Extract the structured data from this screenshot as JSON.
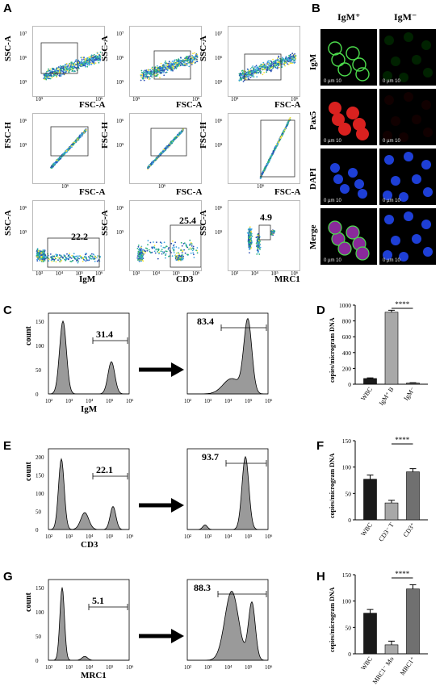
{
  "panels": {
    "A": "A",
    "B": "B",
    "C": "C",
    "D": "D",
    "E": "E",
    "F": "F",
    "G": "G",
    "H": "H"
  },
  "flow_row1": {
    "ylabel": "SSC-A",
    "xlabel": "FSC-A",
    "yticks": [
      "10⁷",
      "10⁶",
      "10⁵"
    ],
    "xticks": [
      "10⁵",
      "10⁶"
    ]
  },
  "flow_row2": {
    "ylabel": "FSC-H",
    "xlabel": "FSC-A",
    "yticks": [
      "10⁶",
      "10⁵"
    ],
    "xticks": [
      "10⁶"
    ]
  },
  "flow_row3": [
    {
      "ylabel": "SSC-A",
      "xlabel": "IgM",
      "gate": "22.2",
      "xticks": [
        "10³",
        "10⁴",
        "10⁵",
        "10⁶"
      ],
      "yticks": [
        "10⁶",
        "10⁵"
      ]
    },
    {
      "ylabel": "SSC-A",
      "xlabel": "CD3",
      "gate": "25.4",
      "xticks": [
        "10³",
        "10⁴",
        "10⁵",
        "10⁶"
      ],
      "yticks": [
        "10⁶",
        "10⁵"
      ]
    },
    {
      "ylabel": "SSC-A",
      "xlabel": "MRC1",
      "gate": "4.9",
      "xticks": [
        "10³",
        "10⁴",
        "10⁵",
        "10⁶"
      ],
      "yticks": [
        "10⁶",
        "10⁵"
      ]
    }
  ],
  "microscopy": {
    "col_headers": [
      "IgM⁺",
      "IgM⁻"
    ],
    "rows": [
      "IgM",
      "Pax5",
      "DAPI",
      "Merge"
    ],
    "scale_left": "0 µm 10",
    "scale_right": "0 µm 10"
  },
  "histograms": {
    "ylabel": "count",
    "C": {
      "y_ticks": [
        "0",
        "50",
        "100",
        "150"
      ],
      "left_gate": "31.4",
      "right_gate": "83.4",
      "xlabel": "IgM"
    },
    "E": {
      "y_ticks": [
        "0",
        "50",
        "100",
        "150",
        "200"
      ],
      "left_gate": "22.1",
      "right_gate": "93.7",
      "xlabel": "CD3"
    },
    "G": {
      "y_ticks": [
        "0",
        "50",
        "100",
        "150"
      ],
      "left_gate": "5.1",
      "right_gate": "88.3",
      "xlabel": "MRC1"
    },
    "x_ticks": [
      "10²",
      "10³",
      "10⁴",
      "10⁵",
      "10⁶"
    ],
    "right_x_ticks": [
      "10²",
      "10³",
      "10⁴",
      "10⁵",
      "10⁶"
    ]
  },
  "chart_data": [
    {
      "type": "bar",
      "panel": "D",
      "categories": [
        "WBC",
        "IgM⁺ B",
        "IgM⁻"
      ],
      "values": [
        72,
        910,
        15
      ],
      "errors": [
        8,
        25,
        4
      ],
      "colors": [
        "#1a1a1a",
        "#a8a8a8",
        "#707070"
      ],
      "ylabel": "copies/microgram DNA",
      "ylim": [
        0,
        1000
      ],
      "yticks": [
        0,
        200,
        400,
        600,
        800,
        1000
      ],
      "significance": "****"
    },
    {
      "type": "bar",
      "panel": "F",
      "categories": [
        "WBC",
        "CD3⁻ T",
        "CD3⁺"
      ],
      "values": [
        77,
        32,
        91
      ],
      "errors": [
        8,
        5,
        6
      ],
      "colors": [
        "#1a1a1a",
        "#a8a8a8",
        "#707070"
      ],
      "ylabel": "copies/microgram DNA",
      "ylim": [
        0,
        150
      ],
      "yticks": [
        0,
        50,
        100,
        150
      ],
      "significance": "****"
    },
    {
      "type": "bar",
      "panel": "H",
      "categories": [
        "WBC",
        "MRC1⁻ Mo",
        "MRC1⁺"
      ],
      "values": [
        77,
        17,
        123
      ],
      "errors": [
        7,
        7,
        8
      ],
      "colors": [
        "#1a1a1a",
        "#a8a8a8",
        "#707070"
      ],
      "ylabel": "copies/microgram DNA",
      "ylim": [
        0,
        150
      ],
      "yticks": [
        0,
        50,
        100,
        150
      ],
      "significance": "****"
    }
  ]
}
